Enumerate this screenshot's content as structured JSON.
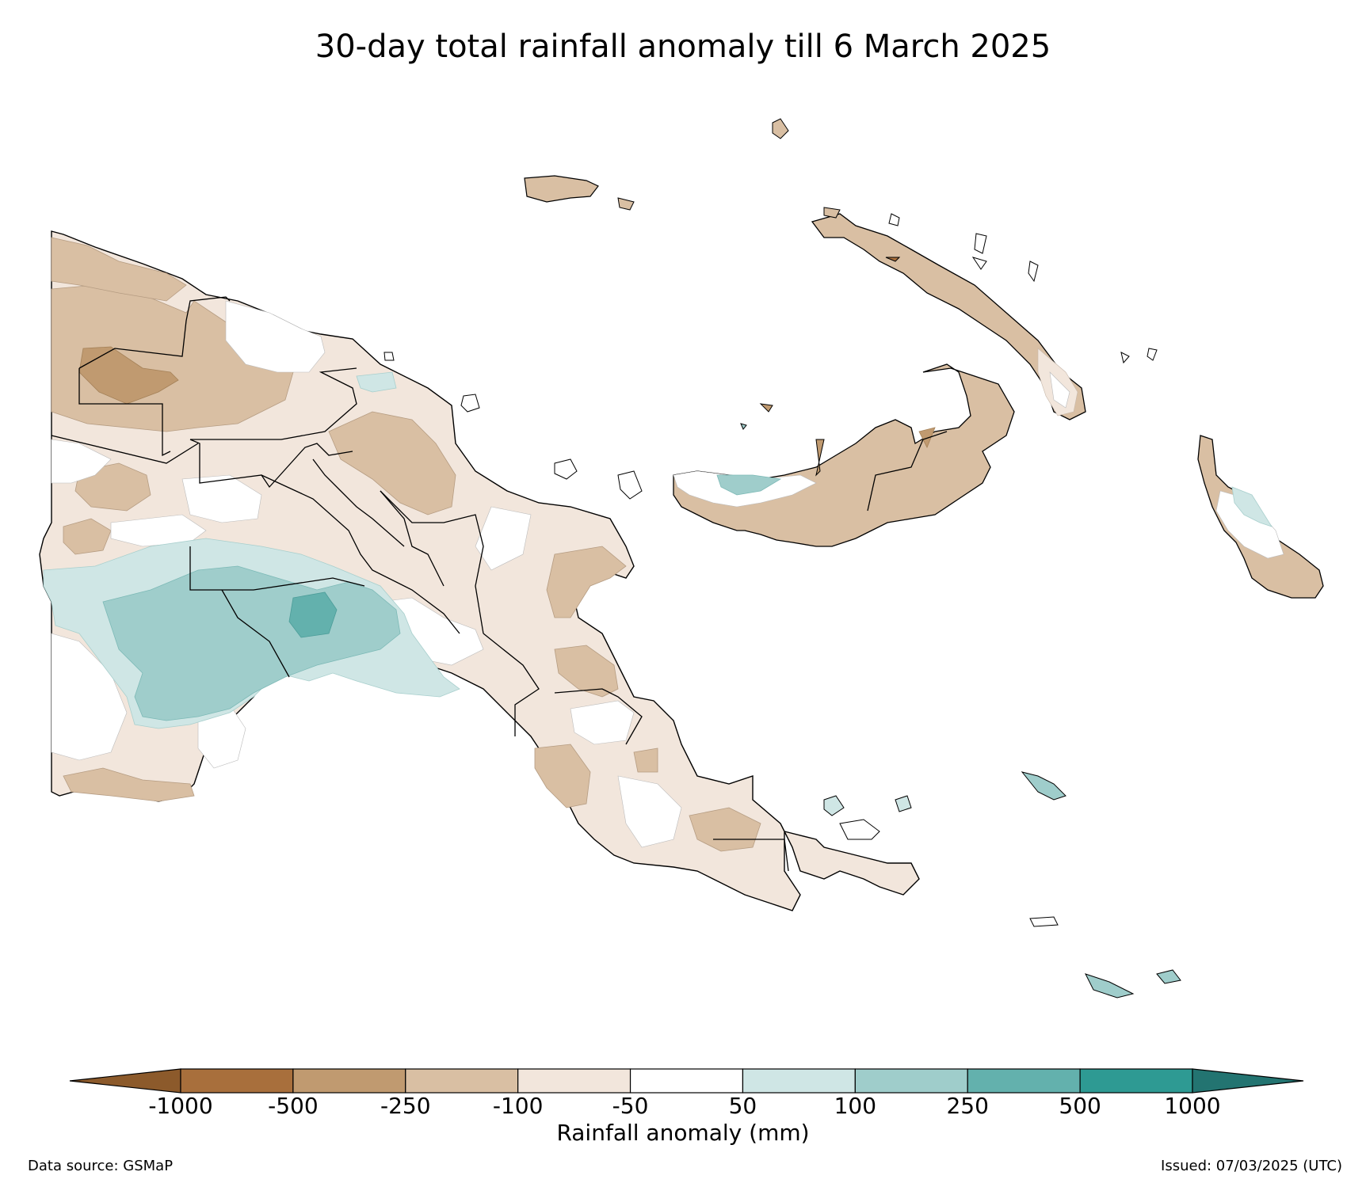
{
  "title": "30-day total rainfall anomaly till 6 March 2025",
  "colorbar": {
    "label": "Rainfall anomaly (mm)",
    "ticks": [
      "-1000",
      "-500",
      "-250",
      "-100",
      "-50",
      "50",
      "100",
      "250",
      "500",
      "1000"
    ],
    "bins": [
      {
        "range": "< -1000",
        "color": "#8c5a2b"
      },
      {
        "range": "-1000 to -500",
        "color": "#a86f3c"
      },
      {
        "range": "-500 to -250",
        "color": "#c09a70"
      },
      {
        "range": "-250 to -100",
        "color": "#d9bfa3"
      },
      {
        "range": "-100 to -50",
        "color": "#f2e6dc"
      },
      {
        "range": "-50 to 50",
        "color": "#ffffff"
      },
      {
        "range": "50 to 100",
        "color": "#cfe6e5"
      },
      {
        "range": "100 to 250",
        "color": "#9fcdcb"
      },
      {
        "range": "250 to 500",
        "color": "#63b1ad"
      },
      {
        "range": "500 to 1000",
        "color": "#2e9a93"
      },
      {
        "range": "> 1000",
        "color": "#237471"
      }
    ]
  },
  "footer": {
    "data_source": "Data source: GSMaP",
    "issued": "Issued: 07/03/2025 (UTC)"
  }
}
